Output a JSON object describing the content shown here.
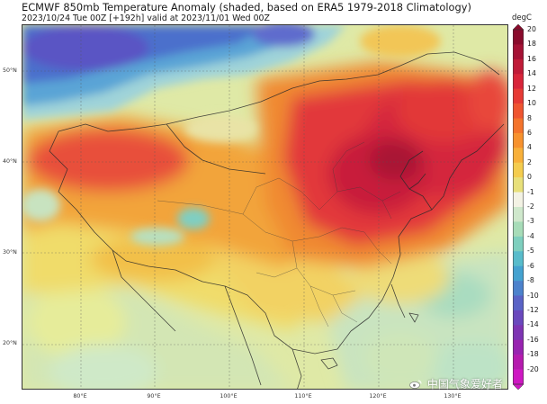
{
  "title": "ECMWF 850mb Temperature Anomaly (shaded, based on ERA5 1979-2018 Climatology)",
  "subtitle": "2023/10/24 Tue 00Z [+192h] valid at 2023/11/01 Wed 00Z",
  "latitude_labels": [
    "50°N",
    "40°N",
    "30°N",
    "20°N"
  ],
  "longitude_labels": [
    "80°E",
    "90°E",
    "100°E",
    "110°E",
    "120°E",
    "130°E"
  ],
  "colorbar": {
    "unit": "degC",
    "ticks": [
      "20",
      "18",
      "16",
      "14",
      "12",
      "10",
      "8",
      "6",
      "4",
      "2",
      "0",
      "-1",
      "-2",
      "-3",
      "-4",
      "-5",
      "-6",
      "-8",
      "-10",
      "-12",
      "-14",
      "-16",
      "-18",
      "-20"
    ],
    "colors": [
      "#8a0b2c",
      "#a51235",
      "#c01b38",
      "#d8253a",
      "#e63a35",
      "#ef5530",
      "#f4742c",
      "#f7922e",
      "#f8b03a",
      "#f4cc4e",
      "#e8e07a",
      "#f3f2e4",
      "#cfe8cc",
      "#a7dcb8",
      "#7ecfbe",
      "#58bccb",
      "#44a2d0",
      "#4c82cc",
      "#5a63c6",
      "#6a48bd",
      "#7e34b3",
      "#9823b0",
      "#b51aae",
      "#ce17c2"
    ]
  },
  "watermark": {
    "text": "中国气象爱好者"
  }
}
